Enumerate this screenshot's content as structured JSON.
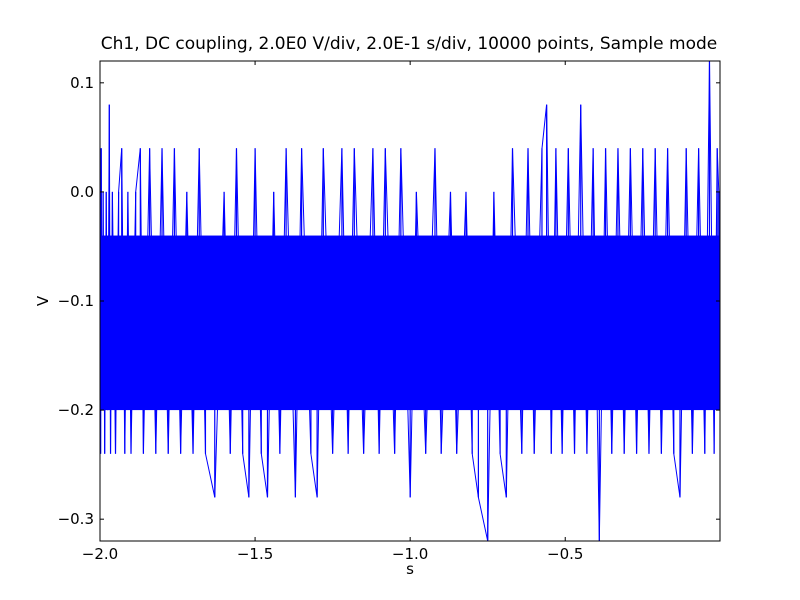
{
  "chart_data": {
    "type": "line",
    "title": "Ch1, DC coupling, 2.0E0 V/div, 2.0E-1 s/div, 10000 points, Sample mode",
    "xlabel": "s",
    "ylabel": "V",
    "xlim": [
      -2.0,
      -0.001
    ],
    "ylim": [
      -0.32,
      0.12
    ],
    "x_ticks": [
      -2.0,
      -1.5,
      -1.0,
      -0.5
    ],
    "x_tick_labels": [
      "−2.0",
      "−1.5",
      "−1.0",
      "−0.5"
    ],
    "y_ticks": [
      0.1,
      0.0,
      -0.1,
      -0.2,
      -0.3
    ],
    "y_tick_labels": [
      "0.1",
      "0.0",
      "−0.1",
      "−0.2",
      "−0.3"
    ],
    "grid": false,
    "legend": "none",
    "line_color": "#0000ff",
    "series": [
      {
        "values_description_note": "",
        "points": [
          [
            -2.0,
            -0.12
          ],
          [
            -1.998,
            -0.24
          ],
          [
            -1.996,
            0.04
          ],
          [
            -1.992,
            -0.2
          ],
          [
            -1.99,
            0.0
          ],
          [
            -1.985,
            -0.24
          ],
          [
            -1.98,
            0.0
          ],
          [
            -1.975,
            -0.2
          ],
          [
            -1.97,
            0.08
          ],
          [
            -1.966,
            -0.24
          ],
          [
            -1.96,
            0.0
          ],
          [
            -1.95,
            -0.24
          ],
          [
            -1.94,
            0.0
          ],
          [
            -1.93,
            0.04
          ],
          [
            -1.92,
            -0.24
          ],
          [
            -1.91,
            0.0
          ],
          [
            -1.9,
            -0.24
          ],
          [
            -1.885,
            0.0
          ],
          [
            -1.87,
            0.04
          ],
          [
            -1.86,
            -0.24
          ],
          [
            -1.84,
            0.04
          ],
          [
            -1.82,
            -0.24
          ],
          [
            -1.8,
            0.04
          ],
          [
            -1.78,
            -0.24
          ],
          [
            -1.76,
            0.04
          ],
          [
            -1.74,
            -0.24
          ],
          [
            -1.72,
            0.0
          ],
          [
            -1.7,
            -0.24
          ],
          [
            -1.68,
            0.04
          ],
          [
            -1.66,
            -0.24
          ],
          [
            -1.63,
            -0.28
          ],
          [
            -1.6,
            0.0
          ],
          [
            -1.58,
            -0.24
          ],
          [
            -1.56,
            0.04
          ],
          [
            -1.54,
            -0.24
          ],
          [
            -1.52,
            -0.28
          ],
          [
            -1.5,
            0.04
          ],
          [
            -1.48,
            -0.24
          ],
          [
            -1.46,
            -0.28
          ],
          [
            -1.44,
            0.0
          ],
          [
            -1.42,
            -0.24
          ],
          [
            -1.4,
            0.04
          ],
          [
            -1.37,
            -0.28
          ],
          [
            -1.35,
            0.04
          ],
          [
            -1.32,
            -0.24
          ],
          [
            -1.3,
            -0.28
          ],
          [
            -1.28,
            0.04
          ],
          [
            -1.25,
            -0.24
          ],
          [
            -1.22,
            0.04
          ],
          [
            -1.2,
            -0.24
          ],
          [
            -1.18,
            0.04
          ],
          [
            -1.15,
            -0.24
          ],
          [
            -1.12,
            0.04
          ],
          [
            -1.1,
            -0.24
          ],
          [
            -1.08,
            0.04
          ],
          [
            -1.05,
            -0.24
          ],
          [
            -1.03,
            0.04
          ],
          [
            -1.0,
            -0.28
          ],
          [
            -0.98,
            0.0
          ],
          [
            -0.95,
            -0.24
          ],
          [
            -0.92,
            0.04
          ],
          [
            -0.9,
            -0.24
          ],
          [
            -0.87,
            0.0
          ],
          [
            -0.85,
            -0.24
          ],
          [
            -0.82,
            0.0
          ],
          [
            -0.8,
            -0.24
          ],
          [
            -0.78,
            -0.28
          ],
          [
            -0.75,
            -0.32
          ],
          [
            -0.73,
            0.0
          ],
          [
            -0.71,
            -0.24
          ],
          [
            -0.69,
            -0.28
          ],
          [
            -0.67,
            0.04
          ],
          [
            -0.64,
            -0.24
          ],
          [
            -0.62,
            0.04
          ],
          [
            -0.6,
            -0.24
          ],
          [
            -0.575,
            0.04
          ],
          [
            -0.56,
            0.08
          ],
          [
            -0.545,
            -0.24
          ],
          [
            -0.53,
            0.04
          ],
          [
            -0.51,
            -0.24
          ],
          [
            -0.49,
            0.04
          ],
          [
            -0.47,
            -0.24
          ],
          [
            -0.45,
            0.08
          ],
          [
            -0.43,
            -0.24
          ],
          [
            -0.41,
            0.04
          ],
          [
            -0.39,
            -0.32
          ],
          [
            -0.37,
            0.04
          ],
          [
            -0.35,
            -0.24
          ],
          [
            -0.33,
            0.04
          ],
          [
            -0.31,
            -0.24
          ],
          [
            -0.29,
            0.04
          ],
          [
            -0.27,
            -0.24
          ],
          [
            -0.25,
            0.04
          ],
          [
            -0.23,
            -0.24
          ],
          [
            -0.21,
            0.04
          ],
          [
            -0.19,
            -0.24
          ],
          [
            -0.17,
            0.04
          ],
          [
            -0.15,
            -0.24
          ],
          [
            -0.13,
            -0.28
          ],
          [
            -0.11,
            0.04
          ],
          [
            -0.09,
            -0.24
          ],
          [
            -0.07,
            0.04
          ],
          [
            -0.05,
            -0.24
          ],
          [
            -0.035,
            0.12
          ],
          [
            -0.02,
            -0.24
          ],
          [
            -0.01,
            0.04
          ],
          [
            -0.005,
            0.0
          ],
          [
            -0.001,
            -0.2
          ]
        ]
      }
    ]
  }
}
